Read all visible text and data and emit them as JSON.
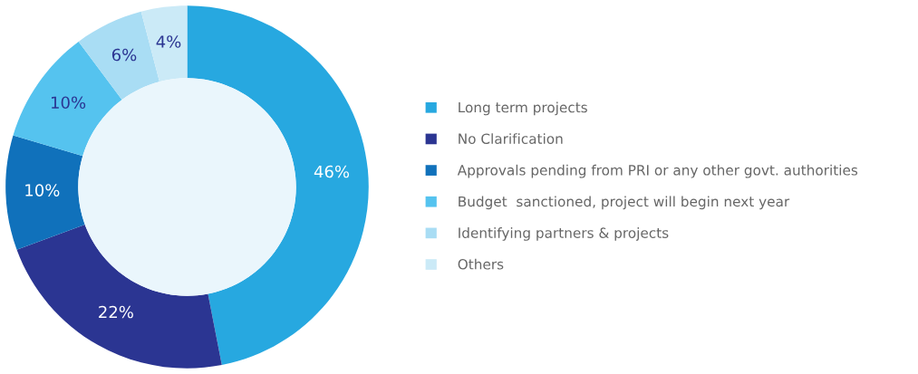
{
  "chart_data": {
    "type": "donut",
    "categories": [
      "Long term projects",
      "No Clarification",
      "Approvals pending from PRI or any other govt. authorities",
      "Budget  sanctioned, project will begin next year",
      "Identifying partners & projects",
      "Others"
    ],
    "values": [
      46,
      22,
      10,
      10,
      6,
      4
    ],
    "value_labels": [
      "46%",
      "22%",
      "10%",
      "10%",
      "6%",
      "4%"
    ],
    "colors": [
      "#27a8e0",
      "#2b3592",
      "#1071bb",
      "#55c3ef",
      "#a9ddf4",
      "#cbeaf7"
    ],
    "legend": "right"
  }
}
